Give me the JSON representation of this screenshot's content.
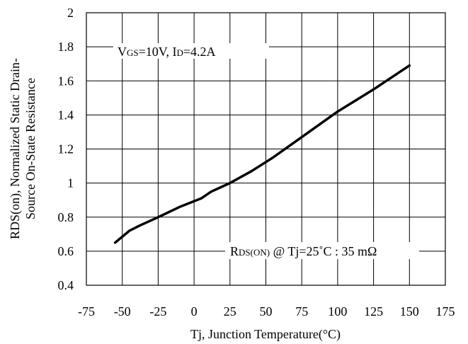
{
  "chart_data": {
    "type": "line",
    "title": "",
    "xlabel": "Tj, Junction Temperature(°C)",
    "ylabel_lines": [
      "RDS(on), Normalized Static Drain-",
      "Source On-State Resistance"
    ],
    "xlim": [
      -75,
      175
    ],
    "ylim": [
      0.4,
      2
    ],
    "x_ticks": [
      "-75",
      "-50",
      "-25",
      "0",
      "25",
      "50",
      "75",
      "100",
      "125",
      "150",
      "175"
    ],
    "y_ticks": [
      "0.4",
      "0.6",
      "0.8",
      "1",
      "1.2",
      "1.4",
      "1.6",
      "1.8",
      "2"
    ],
    "grid": true,
    "series": [
      {
        "color": "#000000",
        "x": [
          -55,
          -45,
          -38,
          -25,
          -10,
          5,
          12,
          25,
          40,
          55,
          75,
          100,
          125,
          150
        ],
        "y": [
          0.65,
          0.72,
          0.75,
          0.8,
          0.86,
          0.91,
          0.95,
          1.0,
          1.07,
          1.15,
          1.27,
          1.42,
          1.55,
          1.69
        ]
      }
    ],
    "annotations": {
      "conditions": {
        "v_main": "V",
        "v_sub": "GS",
        "mid": "=10V, I",
        "i_sub": "D",
        "end": "=4.2A"
      },
      "reference": {
        "r_main": "R",
        "r_sub": "DS(ON)",
        "rest": " @ Tj=25˚C : 35 mΩ"
      }
    }
  }
}
